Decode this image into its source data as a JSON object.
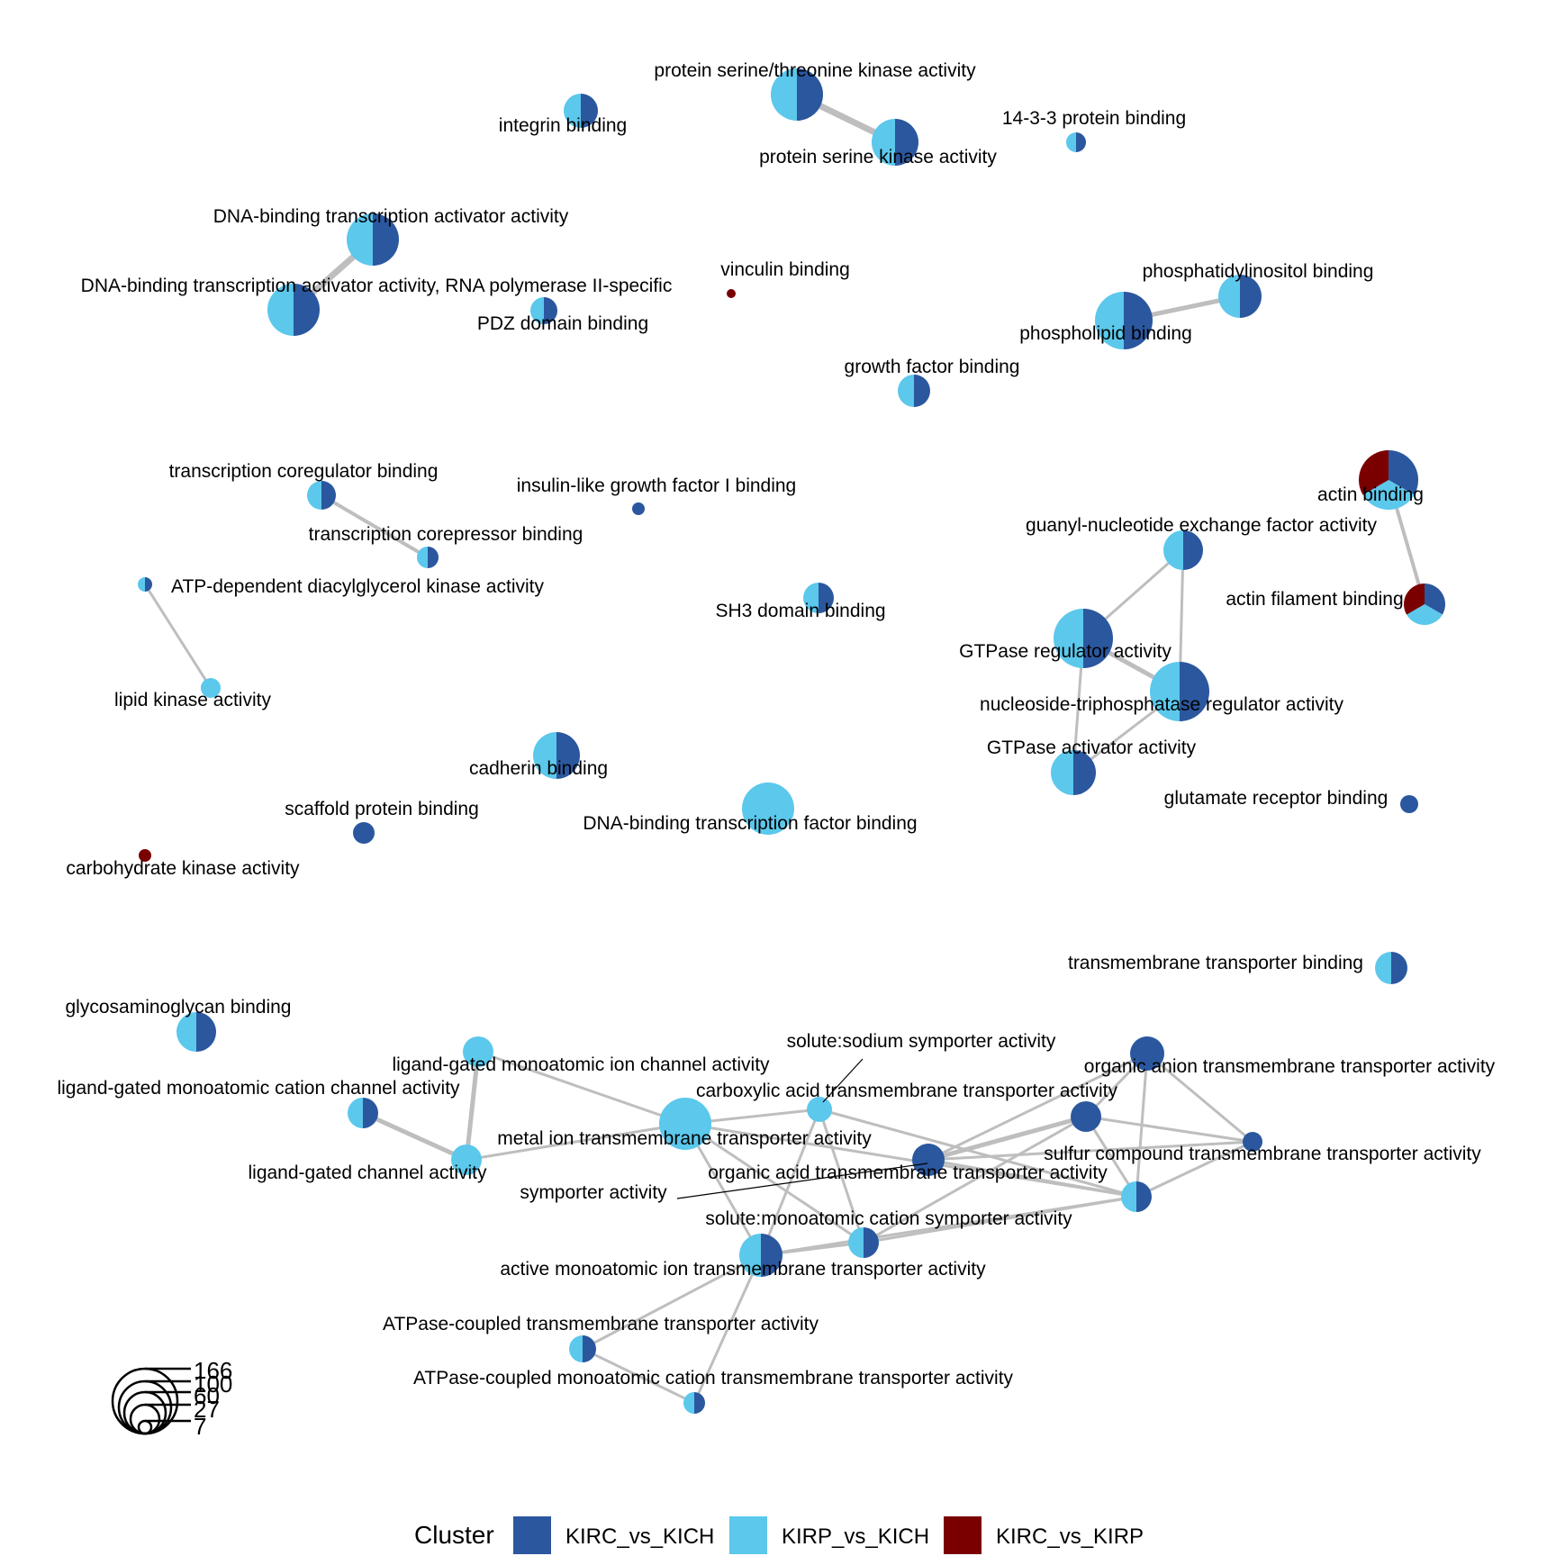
{
  "clusters": [
    {
      "name": "KIRC_vs_KICH",
      "color": "#2B579E"
    },
    {
      "name": "KIRP_vs_KICH",
      "color": "#5BC8EC"
    },
    {
      "name": "KIRC_vs_KIRP",
      "color": "#7A0000"
    }
  ],
  "legend": {
    "title": "Cluster"
  },
  "size_legend": {
    "values": [
      "166",
      "100",
      "60",
      "27",
      "7"
    ]
  },
  "nodes": [
    {
      "id": "n1",
      "label": "protein serine/threonine kinase activity",
      "pie": [
        0.5,
        0.5,
        0
      ]
    },
    {
      "id": "n2",
      "label": "protein serine kinase activity",
      "pie": [
        0.5,
        0.5,
        0
      ]
    },
    {
      "id": "n3",
      "label": "integrin binding",
      "pie": [
        0.5,
        0.5,
        0
      ]
    },
    {
      "id": "n4",
      "label": "14-3-3 protein binding",
      "pie": [
        0.5,
        0.5,
        0
      ]
    },
    {
      "id": "n5",
      "label": "DNA-binding transcription activator activity",
      "pie": [
        0.5,
        0.5,
        0
      ]
    },
    {
      "id": "n6",
      "label": "DNA-binding transcription activator activity, RNA polymerase II-specific",
      "pie": [
        0.5,
        0.5,
        0
      ]
    },
    {
      "id": "n7",
      "label": "PDZ domain binding",
      "pie": [
        0.5,
        0.5,
        0
      ]
    },
    {
      "id": "n8",
      "label": "vinculin binding",
      "pie": [
        0,
        0,
        1
      ]
    },
    {
      "id": "n9",
      "label": "phosphatidylinositol binding",
      "pie": [
        0.5,
        0.5,
        0
      ]
    },
    {
      "id": "n10",
      "label": "phospholipid binding",
      "pie": [
        0.5,
        0.5,
        0
      ]
    },
    {
      "id": "n11",
      "label": "growth factor binding",
      "pie": [
        0.5,
        0.5,
        0
      ]
    },
    {
      "id": "n12",
      "label": "transcription coregulator binding",
      "pie": [
        0.5,
        0.5,
        0
      ]
    },
    {
      "id": "n13",
      "label": "transcription corepressor binding",
      "pie": [
        0.5,
        0.5,
        0
      ]
    },
    {
      "id": "n14",
      "label": "insulin-like growth factor I binding",
      "pie": [
        1,
        0,
        0
      ]
    },
    {
      "id": "n15",
      "label": "actin binding",
      "pie": [
        0.333,
        0.333,
        0.334
      ]
    },
    {
      "id": "n16",
      "label": "actin filament binding",
      "pie": [
        0.333,
        0.333,
        0.334
      ]
    },
    {
      "id": "n17",
      "label": "guanyl-nucleotide exchange factor activity",
      "pie": [
        0.5,
        0.5,
        0
      ]
    },
    {
      "id": "n18",
      "label": "ATP-dependent diacylglycerol kinase activity",
      "pie": [
        0.5,
        0.5,
        0
      ]
    },
    {
      "id": "n19",
      "label": "SH3 domain binding",
      "pie": [
        0.5,
        0.5,
        0
      ]
    },
    {
      "id": "n20",
      "label": "GTPase regulator activity",
      "pie": [
        0.5,
        0.5,
        0
      ]
    },
    {
      "id": "n21",
      "label": "nucleoside-triphosphatase regulator activity",
      "pie": [
        0.5,
        0.5,
        0
      ]
    },
    {
      "id": "n22",
      "label": "lipid kinase activity",
      "pie": [
        0,
        1,
        0
      ]
    },
    {
      "id": "n23",
      "label": "GTPase activator activity",
      "pie": [
        0.5,
        0.5,
        0
      ]
    },
    {
      "id": "n24",
      "label": "cadherin binding",
      "pie": [
        0.5,
        0.5,
        0
      ]
    },
    {
      "id": "n25",
      "label": "glutamate receptor binding",
      "pie": [
        1,
        0,
        0
      ]
    },
    {
      "id": "n26",
      "label": "scaffold protein binding",
      "pie": [
        1,
        0,
        0
      ]
    },
    {
      "id": "n27",
      "label": "DNA-binding transcription factor binding",
      "pie": [
        0,
        1,
        0
      ]
    },
    {
      "id": "n28",
      "label": "carbohydrate kinase activity",
      "pie": [
        0,
        0,
        1
      ]
    },
    {
      "id": "n29",
      "label": "transmembrane transporter binding",
      "pie": [
        0.5,
        0.5,
        0
      ]
    },
    {
      "id": "n30",
      "label": "glycosaminoglycan binding",
      "pie": [
        0.5,
        0.5,
        0
      ]
    },
    {
      "id": "n31",
      "label": "solute:sodium symporter activity",
      "pie": [
        0,
        1,
        0
      ]
    },
    {
      "id": "n32",
      "label": "organic anion transmembrane transporter activity",
      "pie": [
        1,
        0,
        0
      ]
    },
    {
      "id": "n33",
      "label": "ligand-gated monoatomic ion channel activity",
      "pie": [
        0,
        1,
        0
      ]
    },
    {
      "id": "n34",
      "label": "ligand-gated monoatomic cation channel activity",
      "pie": [
        0.5,
        0.5,
        0
      ]
    },
    {
      "id": "n35",
      "label": "carboxylic acid transmembrane transporter activity",
      "pie": [
        1,
        0,
        0
      ]
    },
    {
      "id": "n36",
      "label": "metal ion transmembrane transporter activity",
      "pie": [
        0,
        1,
        0
      ]
    },
    {
      "id": "n37",
      "label": "sulfur compound transmembrane transporter activity",
      "pie": [
        1,
        0,
        0
      ]
    },
    {
      "id": "n38",
      "label": "ligand-gated channel activity",
      "pie": [
        0,
        1,
        0
      ]
    },
    {
      "id": "n39",
      "label": "organic acid transmembrane transporter activity",
      "pie": [
        1,
        0,
        0
      ]
    },
    {
      "id": "n40",
      "label": "symporter activity",
      "pie": [
        0.5,
        0.5,
        0
      ]
    },
    {
      "id": "n41",
      "label": "solute:monoatomic cation symporter activity",
      "pie": [
        0.5,
        0.5,
        0
      ]
    },
    {
      "id": "n42",
      "label": "active monoatomic ion transmembrane transporter activity",
      "pie": [
        0.5,
        0.5,
        0
      ]
    },
    {
      "id": "n43",
      "label": "ATPase-coupled transmembrane transporter activity",
      "pie": [
        0.5,
        0.5,
        0
      ]
    },
    {
      "id": "n44",
      "label": "ATPase-coupled monoatomic cation transmembrane transporter activity",
      "pie": [
        0.5,
        0.5,
        0
      ]
    }
  ],
  "edges": [
    [
      "n1",
      "n2"
    ],
    [
      "n5",
      "n6"
    ],
    [
      "n9",
      "n10"
    ],
    [
      "n12",
      "n13"
    ],
    [
      "n15",
      "n16"
    ],
    [
      "n18",
      "n22"
    ],
    [
      "n17",
      "n20"
    ],
    [
      "n17",
      "n21"
    ],
    [
      "n20",
      "n21"
    ],
    [
      "n20",
      "n23"
    ],
    [
      "n21",
      "n23"
    ],
    [
      "n34",
      "n38"
    ],
    [
      "n33",
      "n38"
    ],
    [
      "n33",
      "n36"
    ],
    [
      "n38",
      "n36"
    ],
    [
      "n36",
      "n31"
    ],
    [
      "n36",
      "n40"
    ],
    [
      "n36",
      "n42"
    ],
    [
      "n36",
      "n41"
    ],
    [
      "n31",
      "n40"
    ],
    [
      "n31",
      "n41"
    ],
    [
      "n31",
      "n42"
    ],
    [
      "n40",
      "n41"
    ],
    [
      "n40",
      "n42"
    ],
    [
      "n41",
      "n42"
    ],
    [
      "n40",
      "n35"
    ],
    [
      "n40",
      "n39"
    ],
    [
      "n40",
      "n32"
    ],
    [
      "n40",
      "n37"
    ],
    [
      "n35",
      "n39"
    ],
    [
      "n35",
      "n32"
    ],
    [
      "n35",
      "n37"
    ],
    [
      "n35",
      "n41"
    ],
    [
      "n39",
      "n32"
    ],
    [
      "n39",
      "n37"
    ],
    [
      "n32",
      "n37"
    ],
    [
      "n42",
      "n43"
    ],
    [
      "n42",
      "n44"
    ],
    [
      "n43",
      "n44"
    ]
  ]
}
